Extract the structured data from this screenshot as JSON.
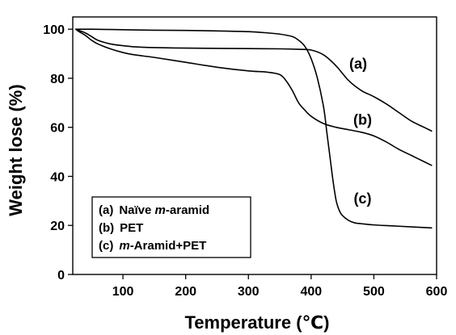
{
  "chart_data": {
    "type": "line",
    "title": "",
    "xlabel": "Temperature (℃)",
    "ylabel": "Weight lose (%)",
    "xlim": [
      20,
      600
    ],
    "ylim": [
      0,
      105
    ],
    "xticks": [
      100,
      200,
      300,
      400,
      500,
      600
    ],
    "yticks": [
      0,
      20,
      40,
      60,
      80,
      100
    ],
    "grid": false,
    "line_color": "#000000",
    "legend": {
      "placement": "bottom-left",
      "entries": [
        {
          "tag": "(a)",
          "prefix": "Naïve ",
          "em": "m",
          "suffix": "-aramid"
        },
        {
          "tag": "(b)",
          "prefix": "PET",
          "em": "",
          "suffix": ""
        },
        {
          "tag": "(c)",
          "prefix": "",
          "em": "m",
          "suffix": "-Aramid+PET"
        }
      ]
    },
    "series": [
      {
        "name": "(a)",
        "x": [
          25,
          30,
          40,
          50,
          60,
          80,
          100,
          120,
          150,
          200,
          250,
          300,
          350,
          380,
          400,
          420,
          440,
          460,
          480,
          500,
          520,
          540,
          560,
          580,
          592
        ],
        "y": [
          100,
          99.5,
          98.5,
          97,
          95.5,
          94,
          93.3,
          92.8,
          92.5,
          92.3,
          92.2,
          92.1,
          92.0,
          91.8,
          91.5,
          89.5,
          85,
          79,
          75,
          72.5,
          69.5,
          66,
          62.5,
          60,
          58.5
        ]
      },
      {
        "name": "(b)",
        "x": [
          25,
          30,
          40,
          50,
          60,
          80,
          100,
          120,
          150,
          200,
          250,
          300,
          330,
          350,
          360,
          370,
          380,
          390,
          400,
          420,
          440,
          460,
          480,
          500,
          520,
          540,
          560,
          580,
          592
        ],
        "y": [
          100,
          99,
          97.5,
          95.5,
          94,
          92,
          90.5,
          89.5,
          88.5,
          86.5,
          84.5,
          83,
          82.5,
          81.5,
          79,
          75,
          70,
          67,
          64.5,
          61.5,
          60,
          59,
          58,
          56.5,
          54,
          51,
          48.5,
          46,
          44.5
        ]
      },
      {
        "name": "(c)",
        "x": [
          25,
          50,
          100,
          150,
          200,
          250,
          300,
          330,
          350,
          370,
          380,
          390,
          400,
          410,
          420,
          425,
          430,
          435,
          440,
          445,
          450,
          460,
          470,
          480,
          500,
          530,
          560,
          592
        ],
        "y": [
          100,
          100,
          99.8,
          99.6,
          99.5,
          99.3,
          99.0,
          98.5,
          98.0,
          97.0,
          95.5,
          93,
          88,
          80,
          68,
          58,
          48,
          38,
          30,
          26,
          24,
          22,
          21,
          20.7,
          20.2,
          19.8,
          19.4,
          19.0
        ]
      }
    ],
    "annotations": [
      {
        "text": "(a)",
        "x": 475,
        "y": 84
      },
      {
        "text": "(b)",
        "x": 482,
        "y": 61
      },
      {
        "text": "(c)",
        "x": 482,
        "y": 29
      }
    ]
  }
}
